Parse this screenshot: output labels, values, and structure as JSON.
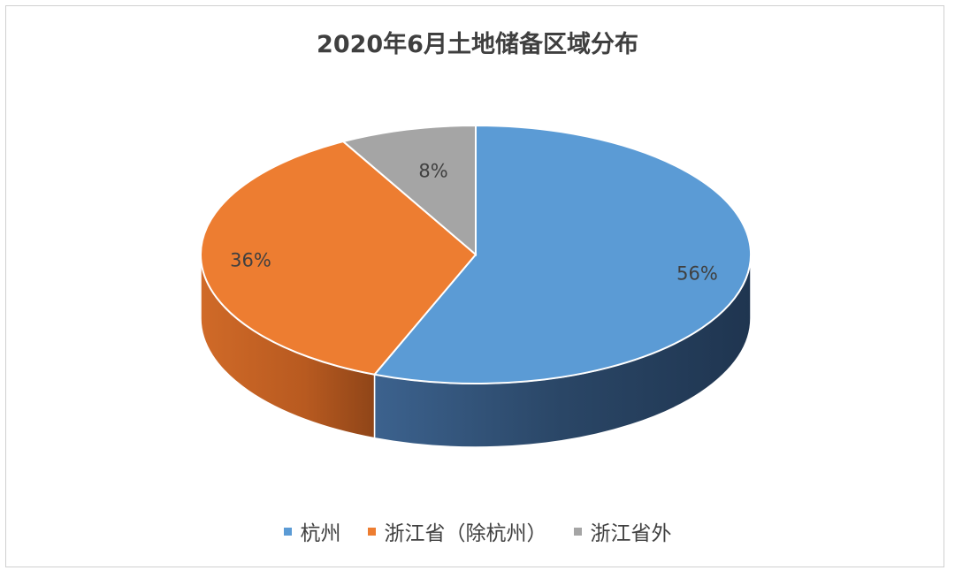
{
  "chart_data": {
    "type": "pie",
    "title": "2020年6月土地储备区域分布",
    "categories": [
      "杭州",
      "浙江省（除杭州）",
      "浙江省外"
    ],
    "values": [
      56,
      36,
      8
    ],
    "data_labels": [
      "56%",
      "36%",
      "8%"
    ],
    "colors": [
      "#5b9bd5",
      "#ed7d31",
      "#a5a5a5"
    ],
    "side_colors": [
      "#2a4a6e",
      "#a85420",
      "#6e6e6e"
    ],
    "legend_position": "bottom",
    "style": "3d"
  }
}
